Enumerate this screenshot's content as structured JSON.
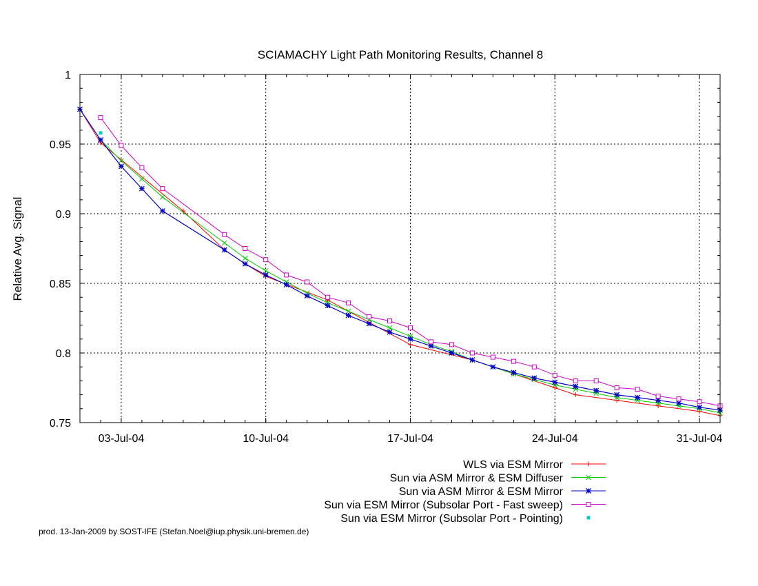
{
  "chart_data": {
    "type": "line",
    "title": "SCIAMACHY Light Path Monitoring Results, Channel 8",
    "ylabel": "Relative Avg. Signal",
    "xlabel": "",
    "x_axis": "date",
    "xlim": [
      "2004-07-01",
      "2004-08-01"
    ],
    "ylim": [
      0.75,
      1.0
    ],
    "yticks": [
      "1",
      "0.95",
      "0.9",
      "0.85",
      "0.8",
      "0.75"
    ],
    "xticks": [
      "03-Jul-04",
      "10-Jul-04",
      "17-Jul-04",
      "24-Jul-04",
      "31-Jul-04"
    ],
    "xtick_dates": [
      "2004-07-03",
      "2004-07-10",
      "2004-07-17",
      "2004-07-24",
      "2004-07-31"
    ],
    "grid": true,
    "legend_position": "bottom-right, below plot",
    "series": [
      {
        "name": "WLS via ESM Mirror",
        "color": "#ff0000",
        "marker": "plus",
        "x": [
          "2004-07-01",
          "2004-07-02",
          "2004-07-06",
          "2004-07-08",
          "2004-07-09",
          "2004-07-10",
          "2004-07-13",
          "2004-07-15",
          "2004-07-17",
          "2004-07-20",
          "2004-07-22",
          "2004-07-24",
          "2004-07-25",
          "2004-07-27",
          "2004-07-29",
          "2004-07-31",
          "2004-08-01"
        ],
        "y": [
          0.975,
          0.951,
          0.902,
          0.874,
          0.864,
          0.855,
          0.838,
          0.822,
          0.806,
          0.795,
          0.785,
          0.775,
          0.77,
          0.766,
          0.762,
          0.758,
          0.755
        ]
      },
      {
        "name": "Sun via ASM Mirror & ESM Diffuser",
        "color": "#00cc00",
        "marker": "cross",
        "x": [
          "2004-07-02",
          "2004-07-03",
          "2004-07-04",
          "2004-07-05",
          "2004-07-08",
          "2004-07-09",
          "2004-07-10",
          "2004-07-11",
          "2004-07-12",
          "2004-07-13",
          "2004-07-14",
          "2004-07-15",
          "2004-07-16",
          "2004-07-17",
          "2004-07-18",
          "2004-07-19",
          "2004-07-20",
          "2004-07-21",
          "2004-07-22",
          "2004-07-23",
          "2004-07-24",
          "2004-07-25",
          "2004-07-26",
          "2004-07-27",
          "2004-07-28",
          "2004-07-29",
          "2004-07-30",
          "2004-07-31",
          "2004-08-01"
        ],
        "y": [
          0.953,
          0.938,
          0.925,
          0.912,
          0.879,
          0.868,
          0.859,
          0.851,
          0.843,
          0.836,
          0.83,
          0.824,
          0.818,
          0.812,
          0.806,
          0.801,
          0.795,
          0.79,
          0.785,
          0.781,
          0.777,
          0.774,
          0.771,
          0.768,
          0.766,
          0.764,
          0.762,
          0.76,
          0.757
        ]
      },
      {
        "name": "Sun via ASM Mirror & ESM Mirror",
        "color": "#0000cc",
        "marker": "star",
        "x": [
          "2004-07-01",
          "2004-07-02",
          "2004-07-03",
          "2004-07-04",
          "2004-07-05",
          "2004-07-08",
          "2004-07-09",
          "2004-07-10",
          "2004-07-11",
          "2004-07-12",
          "2004-07-13",
          "2004-07-14",
          "2004-07-15",
          "2004-07-16",
          "2004-07-17",
          "2004-07-18",
          "2004-07-19",
          "2004-07-20",
          "2004-07-21",
          "2004-07-22",
          "2004-07-23",
          "2004-07-24",
          "2004-07-25",
          "2004-07-26",
          "2004-07-27",
          "2004-07-28",
          "2004-07-29",
          "2004-07-30",
          "2004-07-31",
          "2004-08-01"
        ],
        "y": [
          0.975,
          0.953,
          0.934,
          0.918,
          0.902,
          0.874,
          0.864,
          0.856,
          0.849,
          0.841,
          0.834,
          0.827,
          0.821,
          0.815,
          0.81,
          0.805,
          0.8,
          0.795,
          0.79,
          0.786,
          0.782,
          0.779,
          0.776,
          0.773,
          0.77,
          0.768,
          0.766,
          0.764,
          0.761,
          0.759
        ]
      },
      {
        "name": "Sun via ESM Mirror (Subsolar Port - Fast sweep)",
        "color": "#cc00cc",
        "marker": "square",
        "x": [
          "2004-07-02",
          "2004-07-03",
          "2004-07-04",
          "2004-07-05",
          "2004-07-08",
          "2004-07-09",
          "2004-07-10",
          "2004-07-11",
          "2004-07-12",
          "2004-07-13",
          "2004-07-14",
          "2004-07-15",
          "2004-07-16",
          "2004-07-17",
          "2004-07-18",
          "2004-07-19",
          "2004-07-20",
          "2004-07-21",
          "2004-07-22",
          "2004-07-23",
          "2004-07-24",
          "2004-07-25",
          "2004-07-26",
          "2004-07-27",
          "2004-07-28",
          "2004-07-29",
          "2004-07-30",
          "2004-07-31",
          "2004-08-01"
        ],
        "y": [
          0.969,
          0.949,
          0.933,
          0.918,
          0.885,
          0.875,
          0.867,
          0.856,
          0.851,
          0.84,
          0.836,
          0.826,
          0.823,
          0.818,
          0.808,
          0.806,
          0.8,
          0.797,
          0.794,
          0.79,
          0.784,
          0.78,
          0.78,
          0.775,
          0.774,
          0.769,
          0.767,
          0.765,
          0.762
        ]
      },
      {
        "name": "Sun via ESM Mirror (Subsolar Port - Pointing)",
        "color": "#00cccc",
        "marker": "dot",
        "x": [
          "2004-07-02"
        ],
        "y": [
          0.958
        ]
      }
    ]
  },
  "footer": "prod. 13-Jan-2009 by SOST-IFE (Stefan.Noel@iup.physik.uni-bremen.de)"
}
